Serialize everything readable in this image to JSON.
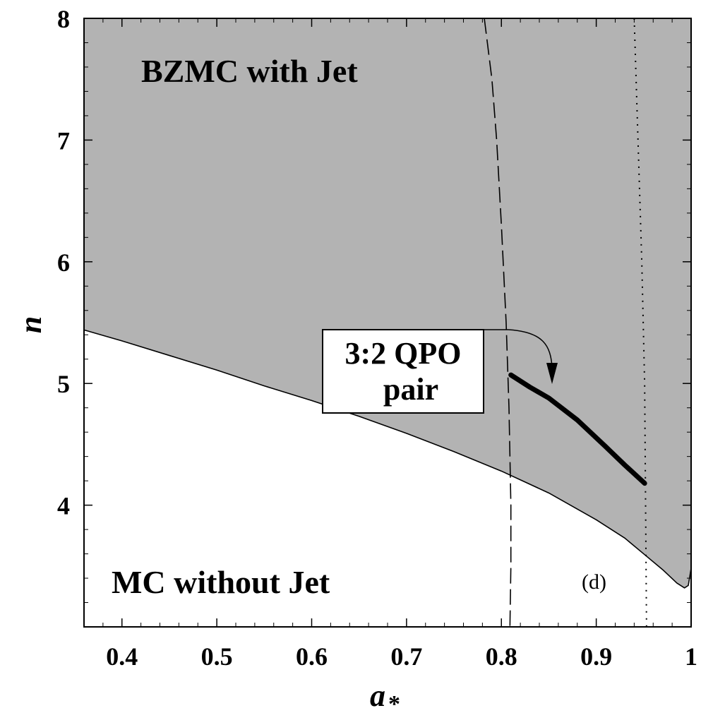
{
  "chart_data": {
    "type": "line",
    "xlabel": "a",
    "xlabel_subscript": "*",
    "ylabel": "n",
    "xlim": [
      0.36,
      1.0
    ],
    "ylim": [
      3.0,
      8.0
    ],
    "xticks": [
      "0.4",
      "0.5",
      "0.6",
      "0.7",
      "0.8",
      "0.9",
      "1"
    ],
    "xtick_values": [
      0.4,
      0.5,
      0.6,
      0.7,
      0.8,
      0.9,
      1.0
    ],
    "yticks": [
      "4",
      "5",
      "6",
      "7",
      "8"
    ],
    "ytick_values": [
      4,
      5,
      6,
      7,
      8
    ],
    "grid": false,
    "colors": {
      "shaded_region": "#b3b3b3",
      "lines": "#000000",
      "background": "#ffffff"
    },
    "region_labels": {
      "upper": "BZMC with Jet",
      "lower": "MC without Jet"
    },
    "panel_label": "(d)",
    "annotation": {
      "line1": "3:2 QPO",
      "line2": "pair"
    },
    "series": [
      {
        "style": "solid-boundary",
        "x": [
          0.36,
          0.4,
          0.45,
          0.5,
          0.55,
          0.6,
          0.65,
          0.7,
          0.75,
          0.8,
          0.85,
          0.9,
          0.93,
          0.95,
          0.97,
          0.985,
          0.993,
          0.997,
          1.0
        ],
        "y": [
          5.44,
          5.35,
          5.23,
          5.11,
          4.98,
          4.86,
          4.73,
          4.59,
          4.44,
          4.28,
          4.1,
          3.88,
          3.73,
          3.6,
          3.47,
          3.36,
          3.32,
          3.34,
          3.48
        ]
      },
      {
        "style": "dashed",
        "x": [
          0.782,
          0.79,
          0.795,
          0.8,
          0.805,
          0.808,
          0.81,
          0.81,
          0.809
        ],
        "y": [
          8.0,
          7.5,
          7.0,
          6.3,
          5.5,
          4.8,
          4.0,
          3.5,
          3.0
        ]
      },
      {
        "style": "dotted",
        "x": [
          0.94,
          0.944,
          0.948,
          0.951,
          0.952,
          0.953
        ],
        "y": [
          8.0,
          7.0,
          6.0,
          5.0,
          4.0,
          3.0
        ]
      },
      {
        "style": "thick",
        "x": [
          0.81,
          0.83,
          0.85,
          0.88,
          0.91,
          0.93,
          0.951
        ],
        "y": [
          5.07,
          4.97,
          4.88,
          4.7,
          4.48,
          4.33,
          4.18
        ]
      }
    ]
  }
}
